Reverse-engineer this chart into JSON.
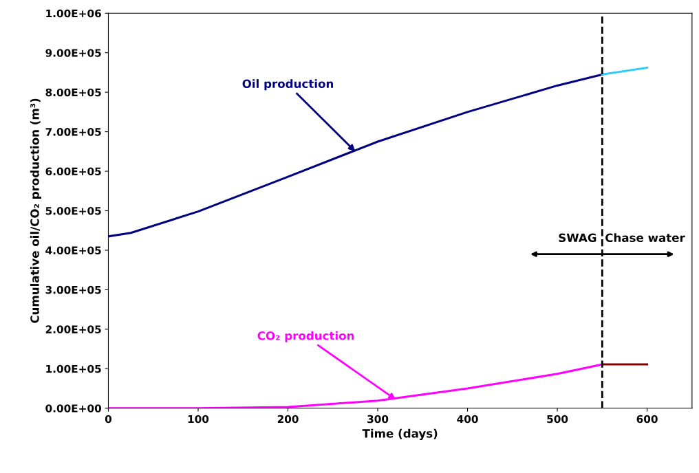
{
  "chart_data": {
    "type": "line",
    "xlabel": "Time (days)",
    "ylabel": "Cumulative oil/CO₂ production (m³)",
    "xlim": [
      0,
      650
    ],
    "xticks": [
      0,
      100,
      200,
      300,
      400,
      500,
      600
    ],
    "ylim": [
      0,
      1000000
    ],
    "yticks": [
      {
        "value": 0,
        "label": "0.00E+00"
      },
      {
        "value": 100000,
        "label": "1.00E+05"
      },
      {
        "value": 200000,
        "label": "2.00E+05"
      },
      {
        "value": 300000,
        "label": "3.00E+05"
      },
      {
        "value": 400000,
        "label": "4.00E+05"
      },
      {
        "value": 500000,
        "label": "5.00E+05"
      },
      {
        "value": 600000,
        "label": "6.00E+05"
      },
      {
        "value": 700000,
        "label": "7.00E+05"
      },
      {
        "value": 800000,
        "label": "8.00E+05"
      },
      {
        "value": 900000,
        "label": "9.00E+05"
      },
      {
        "value": 1000000,
        "label": "1.00E+06"
      }
    ],
    "series": [
      {
        "color": "#000080",
        "x": [
          0,
          25,
          100,
          200,
          300,
          400,
          500,
          550
        ],
        "values": [
          435000,
          444000,
          498000,
          586000,
          675000,
          750000,
          817000,
          845000
        ]
      },
      {
        "color": "#33ccff",
        "x": [
          550,
          600
        ],
        "values": [
          845000,
          862000
        ]
      },
      {
        "color": "#ff00ff",
        "x": [
          0,
          100,
          200,
          300,
          400,
          500,
          550
        ],
        "values": [
          0,
          0,
          3000,
          19000,
          50000,
          87000,
          111000
        ]
      },
      {
        "color": "#800000",
        "x": [
          550,
          600
        ],
        "values": [
          111000,
          111000
        ]
      }
    ],
    "ref_lines": [
      {
        "axis": "x",
        "value": 550,
        "color": "#000000",
        "line_style": "dashed"
      }
    ],
    "annotations": [
      {
        "text": "Oil production",
        "x": 275,
        "y": 650000
      },
      {
        "text": "CO₂ production",
        "x": 320,
        "y": 22000
      },
      "SWAG",
      "Chase water"
    ],
    "grid": false,
    "legend": false,
    "marker": "none",
    "line_style": "solid"
  }
}
